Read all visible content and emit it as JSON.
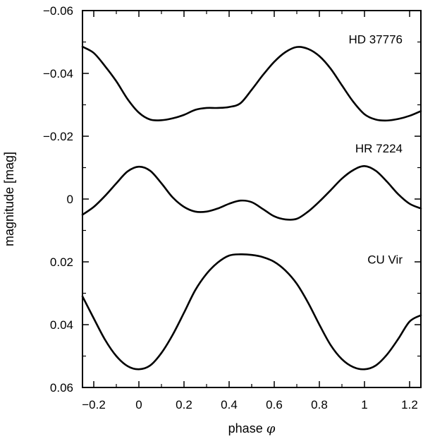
{
  "chart_data": {
    "type": "line",
    "xlabel": "phase",
    "xlabel_symbol": "φ",
    "ylabel": "magnitude [mag]",
    "xlim": [
      -0.25,
      1.25
    ],
    "ylim": [
      -0.06,
      0.06
    ],
    "y_inverted": true,
    "grid": false,
    "x_ticks": [
      -0.2,
      0,
      0.2,
      0.4,
      0.6,
      0.8,
      1,
      1.2
    ],
    "x_tick_labels": [
      "−0.2",
      "0",
      "0.2",
      "0.4",
      "0.6",
      "0.8",
      "1",
      "1.2"
    ],
    "y_ticks": [
      -0.06,
      -0.04,
      -0.02,
      0,
      0.02,
      0.04,
      0.06
    ],
    "y_tick_labels": [
      "−0.06",
      "−0.04",
      "−0.02",
      "0",
      "0.02",
      "0.04",
      "0.06"
    ],
    "series": [
      {
        "name": "HD 37776",
        "color": "#000000",
        "label_pos": [
          1.2,
          -0.0495
        ],
        "x": [
          -0.25,
          -0.2,
          -0.15,
          -0.1,
          -0.05,
          0.0,
          0.05,
          0.1,
          0.15,
          0.2,
          0.25,
          0.3,
          0.35,
          0.4,
          0.45,
          0.5,
          0.55,
          0.6,
          0.65,
          0.7,
          0.75,
          0.8,
          0.85,
          0.9,
          0.95,
          1.0,
          1.05,
          1.1,
          1.15,
          1.2,
          1.25
        ],
        "y": [
          -0.0485,
          -0.0465,
          -0.0423,
          -0.0375,
          -0.0318,
          -0.0275,
          -0.0253,
          -0.0251,
          -0.0257,
          -0.0268,
          -0.0284,
          -0.029,
          -0.029,
          -0.0293,
          -0.0305,
          -0.0348,
          -0.0395,
          -0.0437,
          -0.0468,
          -0.0484,
          -0.0478,
          -0.0455,
          -0.0415,
          -0.0362,
          -0.031,
          -0.027,
          -0.0253,
          -0.025,
          -0.0255,
          -0.0265,
          -0.028
        ]
      },
      {
        "name": "HR 7224",
        "color": "#000000",
        "label_pos": [
          1.2,
          -0.0148
        ],
        "x": [
          -0.25,
          -0.2,
          -0.15,
          -0.1,
          -0.05,
          0.0,
          0.05,
          0.1,
          0.15,
          0.2,
          0.25,
          0.3,
          0.35,
          0.4,
          0.45,
          0.5,
          0.55,
          0.6,
          0.65,
          0.7,
          0.75,
          0.8,
          0.85,
          0.9,
          0.95,
          1.0,
          1.05,
          1.1,
          1.15,
          1.2,
          1.25
        ],
        "y": [
          0.005,
          0.0025,
          -0.001,
          -0.005,
          -0.0088,
          -0.0103,
          -0.009,
          -0.005,
          -0.0005,
          0.0025,
          0.004,
          0.004,
          0.003,
          0.0015,
          0.0005,
          0.001,
          0.0032,
          0.0055,
          0.0065,
          0.0063,
          0.004,
          0.0008,
          -0.0028,
          -0.0065,
          -0.0092,
          -0.0105,
          -0.009,
          -0.0055,
          -0.0015,
          0.0015,
          0.003
        ]
      },
      {
        "name": "CU Vir",
        "color": "#000000",
        "label_pos": [
          1.2,
          0.0206
        ],
        "x": [
          -0.25,
          -0.2,
          -0.15,
          -0.1,
          -0.05,
          0.0,
          0.05,
          0.1,
          0.15,
          0.2,
          0.25,
          0.3,
          0.35,
          0.4,
          0.45,
          0.5,
          0.55,
          0.6,
          0.65,
          0.7,
          0.75,
          0.8,
          0.85,
          0.9,
          0.95,
          1.0,
          1.05,
          1.1,
          1.15,
          1.2,
          1.25
        ],
        "y": [
          0.031,
          0.038,
          0.0448,
          0.05,
          0.0532,
          0.0542,
          0.053,
          0.049,
          0.0432,
          0.0362,
          0.029,
          0.0238,
          0.0202,
          0.018,
          0.0176,
          0.0178,
          0.0185,
          0.02,
          0.0228,
          0.027,
          0.033,
          0.04,
          0.0465,
          0.051,
          0.0535,
          0.0542,
          0.053,
          0.0495,
          0.0445,
          0.039,
          0.037
        ]
      }
    ]
  }
}
